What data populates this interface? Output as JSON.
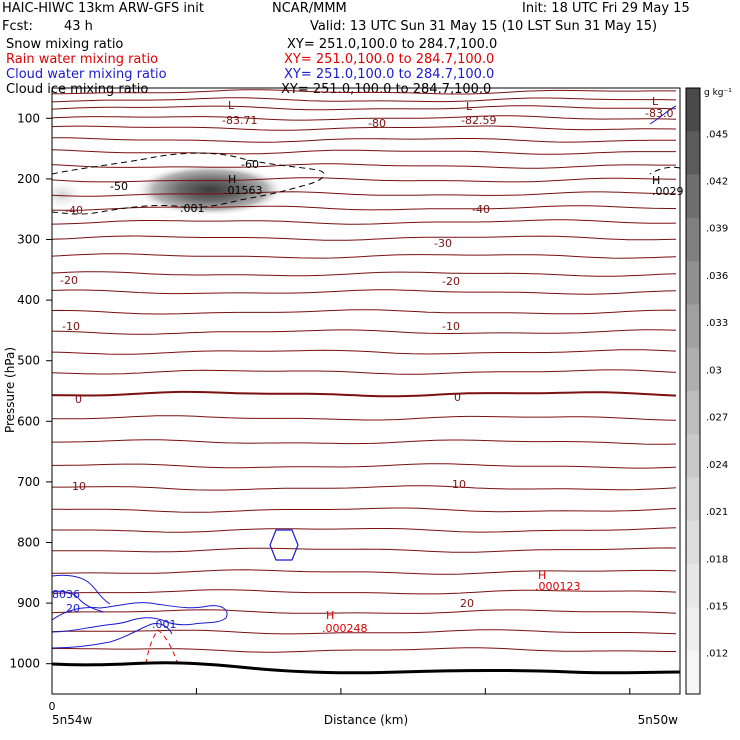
{
  "header": {
    "model": "HAIC-HIWC 13km ARW-GFS init",
    "org": "NCAR/MMM",
    "init": "Init: 18 UTC Fri 29 May 15",
    "fcst_label": "Fcst:",
    "fcst_value": "43 h",
    "valid": "Valid: 13 UTC Sun 31 May 15 (10 LST Sun 31 May 15)",
    "fields": [
      {
        "name": "Snow mixing ratio",
        "xy": "XY= 251.0,100.0 to 284.7,100.0",
        "color": "#000000"
      },
      {
        "name": "Rain water mixing ratio",
        "xy": "XY= 251.0,100.0 to 284.7,100.0",
        "color": "#e00000"
      },
      {
        "name": "Cloud water mixing ratio",
        "xy": "XY= 251.0,100.0 to 284.7,100.0",
        "color": "#1a1ad0"
      },
      {
        "name": "Cloud ice mixing ratio",
        "xy": "XY= 251.0,100.0 to 284.7,100.0",
        "color": "#000000"
      }
    ]
  },
  "chart_data": {
    "type": "cross-section",
    "ylabel": "Pressure (hPa)",
    "xlabel": "Distance (km)",
    "x_left_label": "5n54w",
    "x_right_label": "5n50w",
    "x_tick_zero": "0",
    "ylim": [
      50,
      1050
    ],
    "y_ticks": [
      100,
      200,
      300,
      400,
      500,
      600,
      700,
      800,
      900,
      1000
    ],
    "colorbar": {
      "unit": "g kg⁻¹",
      "labels": [
        ".045",
        ".042",
        ".039",
        ".036",
        ".033",
        ".03",
        ".027",
        ".024",
        ".021",
        ".018",
        ".015",
        ".012"
      ],
      "colors": [
        "#4a4a4a",
        "#5c5c5c",
        "#6e6e6e",
        "#808080",
        "#909090",
        "#a0a0a0",
        "#afafaf",
        "#bdbdbd",
        "#c9c9c9",
        "#d4d4d4",
        "#dedede",
        "#e7e7e7",
        "#efefef",
        "#f6f6f6"
      ]
    },
    "temperature_labels": [
      "-83.71",
      "-82.59",
      "-83.0",
      "-80",
      "-60",
      "-50",
      "-40",
      "-40",
      "-30",
      "-20",
      "-20",
      "-10",
      "-10",
      "0",
      "0",
      "10",
      "10",
      "20",
      "20"
    ],
    "extrema": [
      {
        "kind": "L",
        "value": "-83.71",
        "color": "#7a1010"
      },
      {
        "kind": "L",
        "value": "-82.59",
        "color": "#7a1010"
      },
      {
        "kind": "L",
        "value": "-83.0",
        "color": "#7a1010"
      },
      {
        "kind": "H",
        "value": ".01563",
        "color": "#000000"
      },
      {
        "kind": "H",
        "value": ".0029",
        "color": "#000000"
      },
      {
        "kind": "H",
        "value": ".000123",
        "color": "#e00000"
      },
      {
        "kind": "H",
        "value": ".000248",
        "color": "#e00000"
      }
    ],
    "other_labels": [
      {
        "text": ".001",
        "color": "#000000"
      },
      {
        "text": ".001",
        "color": "#1a1ad0"
      },
      {
        "text": "8036",
        "color": "#1a1ad0"
      },
      {
        "text": "20",
        "color": "#1a1ad0"
      }
    ],
    "colors": {
      "temperature": "#7a1010",
      "frame": "#000000",
      "terrain": "#000000"
    }
  }
}
